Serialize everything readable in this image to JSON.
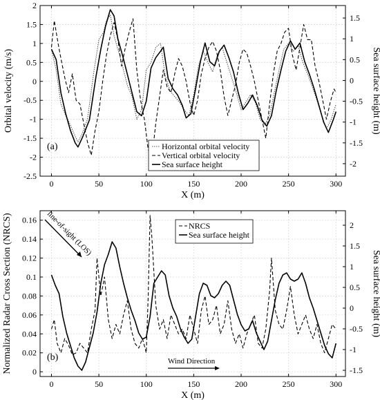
{
  "chart_data": [
    {
      "type": "line",
      "panel_label": "(a)",
      "xlabel": "X (m)",
      "ylabel": "Orbital velocity (m/s)",
      "y2label": "Sea surface height (m)",
      "xlim": [
        -12,
        310
      ],
      "ylim": [
        -2.5,
        2
      ],
      "y2lim": [
        -2.3,
        1.8
      ],
      "xticks": [
        0,
        50,
        100,
        150,
        200,
        250,
        300
      ],
      "yticks": [
        -2.5,
        -2,
        -1.5,
        -1,
        -0.5,
        0,
        0.5,
        1,
        1.5,
        2
      ],
      "y2ticks": [
        -2,
        -1.5,
        -1,
        -0.5,
        0,
        0.5,
        1,
        1.5
      ],
      "grid": true,
      "legend_position": "bottom-center",
      "series": [
        {
          "name": "Horizontal orbital velocity",
          "axis": "left",
          "style": "dotted",
          "x": [
            0,
            5,
            10,
            15,
            20,
            25,
            28,
            32,
            38,
            45,
            50,
            55,
            58,
            62,
            66,
            70,
            75,
            80,
            85,
            90,
            95,
            100,
            105,
            110,
            115,
            120,
            125,
            130,
            135,
            140,
            145,
            150,
            155,
            160,
            165,
            170,
            175,
            180,
            185,
            190,
            195,
            200,
            205,
            210,
            215,
            220,
            225,
            230,
            235,
            240,
            245,
            250,
            255,
            260,
            265,
            270,
            275,
            280,
            285,
            290,
            295,
            300
          ],
          "y": [
            0.85,
            0.3,
            -0.6,
            -0.9,
            -1.15,
            -1.45,
            -1.6,
            -1.4,
            -1.0,
            0.3,
            1.1,
            1.3,
            1.6,
            1.75,
            1.2,
            0.85,
            0.4,
            -0.1,
            -0.4,
            -1.0,
            -0.75,
            0.3,
            0.5,
            0.9,
            1.0,
            0.15,
            -0.25,
            -0.4,
            -0.55,
            -0.75,
            -0.9,
            -0.35,
            0.4,
            0.8,
            0.5,
            0.25,
            0.7,
            0.9,
            0.5,
            0.1,
            -0.3,
            -0.75,
            -0.55,
            -0.35,
            -0.55,
            -1.0,
            -1.15,
            -0.9,
            -0.3,
            0.3,
            0.85,
            1.0,
            0.8,
            0.95,
            0.5,
            0.2,
            -0.15,
            -0.5,
            -0.9,
            -1.25,
            -1.0,
            -0.6
          ]
        },
        {
          "name": "Vertical orbital velocity",
          "axis": "left",
          "style": "dashed",
          "x": [
            0,
            3,
            7,
            10,
            14,
            18,
            22,
            26,
            30,
            34,
            38,
            42,
            46,
            50,
            54,
            58,
            62,
            66,
            70,
            74,
            78,
            82,
            86,
            90,
            94,
            98,
            102,
            106,
            110,
            114,
            118,
            122,
            126,
            130,
            134,
            138,
            142,
            146,
            150,
            154,
            158,
            162,
            166,
            170,
            174,
            178,
            182,
            186,
            190,
            194,
            198,
            202,
            206,
            210,
            214,
            218,
            222,
            226,
            230,
            234,
            238,
            242,
            246,
            250,
            254,
            258,
            262,
            266,
            270,
            274,
            278,
            282,
            286,
            290,
            294,
            298,
            300
          ],
          "y": [
            0.9,
            1.6,
            1.0,
            0.6,
            0.1,
            -0.3,
            0.2,
            -0.5,
            -0.6,
            -1.1,
            -1.6,
            -1.95,
            -1.3,
            -0.8,
            0.0,
            0.7,
            1.2,
            1.55,
            1.1,
            0.4,
            0.9,
            1.3,
            1.65,
            0.3,
            -0.5,
            -1.0,
            -1.8,
            -2.0,
            -1.1,
            -0.4,
            0.3,
            -0.15,
            -0.3,
            0.2,
            0.6,
            0.4,
            0.0,
            -0.55,
            -0.9,
            -0.5,
            0.2,
            0.6,
            0.9,
            1.05,
            0.8,
            0.3,
            -0.4,
            -0.9,
            -0.5,
            -0.1,
            0.5,
            0.85,
            0.75,
            0.4,
            0.0,
            -0.5,
            -1.0,
            -1.5,
            -0.6,
            0.2,
            0.8,
            1.0,
            1.3,
            1.4,
            0.7,
            0.3,
            0.9,
            1.5,
            1.1,
            1.1,
            0.4,
            0.0,
            -0.5,
            -1.0,
            -0.55,
            -0.2,
            -0.3
          ]
        },
        {
          "name": "Sea surface height",
          "axis": "right",
          "style": "solid",
          "x": [
            0,
            5,
            10,
            15,
            20,
            25,
            28,
            33,
            40,
            47,
            52,
            57,
            62,
            66,
            70,
            75,
            80,
            85,
            90,
            95,
            100,
            105,
            110,
            115,
            118,
            123,
            128,
            133,
            138,
            142,
            147,
            152,
            157,
            162,
            167,
            172,
            177,
            182,
            187,
            192,
            197,
            202,
            207,
            212,
            217,
            222,
            227,
            232,
            237,
            242,
            247,
            252,
            257,
            262,
            267,
            272,
            277,
            282,
            287,
            292,
            297,
            300
          ],
          "y": [
            0.75,
            0.5,
            -0.3,
            -0.8,
            -1.2,
            -1.5,
            -1.6,
            -1.35,
            -0.95,
            0.1,
            0.75,
            1.3,
            1.7,
            1.55,
            1.0,
            0.6,
            0.15,
            -0.3,
            -0.75,
            -0.85,
            -0.5,
            0.3,
            0.55,
            0.7,
            0.8,
            0.05,
            -0.2,
            -0.35,
            -0.6,
            -0.9,
            -0.8,
            -0.2,
            0.45,
            0.9,
            0.45,
            0.35,
            0.7,
            0.85,
            0.55,
            0.2,
            -0.3,
            -0.7,
            -0.55,
            -0.35,
            -0.6,
            -0.95,
            -1.1,
            -0.85,
            -0.25,
            0.25,
            0.7,
            0.95,
            0.75,
            0.9,
            0.45,
            0.15,
            -0.2,
            -0.6,
            -1.0,
            -1.25,
            -0.95,
            -0.75
          ]
        }
      ]
    },
    {
      "type": "line",
      "panel_label": "(b)",
      "xlabel": "X (m)",
      "ylabel": "Normalized Radar Cross Section (NRCS)",
      "y2label": "Sea surface height (m)",
      "xlim": [
        -12,
        310
      ],
      "ylim": [
        -0.005,
        0.17
      ],
      "y2lim": [
        -1.65,
        2.35
      ],
      "xticks": [
        0,
        50,
        100,
        150,
        200,
        250,
        300
      ],
      "yticks": [
        0,
        0.02,
        0.04,
        0.06,
        0.08,
        0.1,
        0.12,
        0.14,
        0.16
      ],
      "y2ticks": [
        -1.5,
        -1,
        -0.5,
        0,
        0.5,
        1,
        1.5,
        2
      ],
      "grid": true,
      "legend_position": "top-right",
      "annotations": [
        "line-of-sight (LOS)",
        "Wind Direction"
      ],
      "series": [
        {
          "name": "NRCS",
          "axis": "left",
          "style": "dashed",
          "x": [
            0,
            3,
            6,
            10,
            14,
            18,
            22,
            26,
            30,
            34,
            38,
            42,
            46,
            48,
            52,
            56,
            60,
            64,
            68,
            72,
            76,
            80,
            84,
            88,
            92,
            96,
            100,
            102,
            104,
            106,
            110,
            114,
            118,
            122,
            126,
            130,
            134,
            138,
            142,
            146,
            150,
            154,
            158,
            162,
            166,
            170,
            174,
            178,
            182,
            186,
            190,
            194,
            198,
            202,
            206,
            210,
            214,
            218,
            222,
            226,
            230,
            232,
            236,
            240,
            244,
            248,
            252,
            256,
            260,
            264,
            268,
            272,
            276,
            280,
            284,
            288,
            292,
            296,
            300
          ],
          "y": [
            0.045,
            0.055,
            0.03,
            0.02,
            0.035,
            0.028,
            0.018,
            0.02,
            0.03,
            0.025,
            0.02,
            0.045,
            0.065,
            0.12,
            0.08,
            0.1,
            0.055,
            0.035,
            0.05,
            0.04,
            0.06,
            0.075,
            0.045,
            0.03,
            0.025,
            0.035,
            0.02,
            0.08,
            0.165,
            0.14,
            0.07,
            0.045,
            0.055,
            0.035,
            0.06,
            0.05,
            0.04,
            0.045,
            0.035,
            0.06,
            0.045,
            0.03,
            0.065,
            0.08,
            0.05,
            0.055,
            0.07,
            0.04,
            0.05,
            0.075,
            0.045,
            0.03,
            0.04,
            0.025,
            0.04,
            0.05,
            0.06,
            0.03,
            0.025,
            0.045,
            0.085,
            0.12,
            0.065,
            0.05,
            0.045,
            0.065,
            0.09,
            0.06,
            0.04,
            0.05,
            0.06,
            0.045,
            0.035,
            0.05,
            0.03,
            0.02,
            0.035,
            0.05,
            0.045
          ]
        },
        {
          "name": "Sea surface height",
          "axis": "right",
          "style": "solid",
          "x": [
            0,
            4,
            8,
            12,
            16,
            20,
            24,
            28,
            32,
            36,
            40,
            44,
            48,
            52,
            56,
            60,
            64,
            68,
            72,
            76,
            80,
            84,
            88,
            92,
            96,
            100,
            104,
            108,
            112,
            116,
            120,
            124,
            128,
            132,
            136,
            140,
            144,
            148,
            152,
            156,
            160,
            164,
            168,
            172,
            176,
            180,
            184,
            188,
            192,
            196,
            200,
            204,
            208,
            212,
            216,
            220,
            224,
            228,
            232,
            236,
            240,
            244,
            248,
            252,
            256,
            260,
            264,
            268,
            272,
            276,
            280,
            284,
            288,
            292,
            296,
            300
          ],
          "y": [
            0.8,
            0.55,
            0.35,
            -0.2,
            -0.6,
            -0.9,
            -1.2,
            -1.4,
            -1.5,
            -1.3,
            -0.95,
            -0.6,
            -0.1,
            0.6,
            1.05,
            1.3,
            1.6,
            1.45,
            1.0,
            0.6,
            0.25,
            -0.05,
            -0.3,
            -0.6,
            -0.75,
            -0.7,
            -0.2,
            0.6,
            0.75,
            0.9,
            0.8,
            0.3,
            0.0,
            -0.2,
            -0.5,
            -0.7,
            -0.85,
            -0.75,
            -0.2,
            0.35,
            0.6,
            0.55,
            0.3,
            0.25,
            0.35,
            0.55,
            0.65,
            0.55,
            0.2,
            -0.15,
            -0.4,
            -0.55,
            -0.5,
            -0.3,
            -0.6,
            -0.8,
            -1.0,
            -0.8,
            -0.3,
            0.2,
            0.6,
            0.8,
            0.85,
            0.7,
            0.65,
            0.7,
            0.85,
            0.6,
            0.25,
            0.0,
            -0.3,
            -0.6,
            -0.9,
            -1.1,
            -1.2,
            -0.85
          ]
        }
      ]
    }
  ]
}
